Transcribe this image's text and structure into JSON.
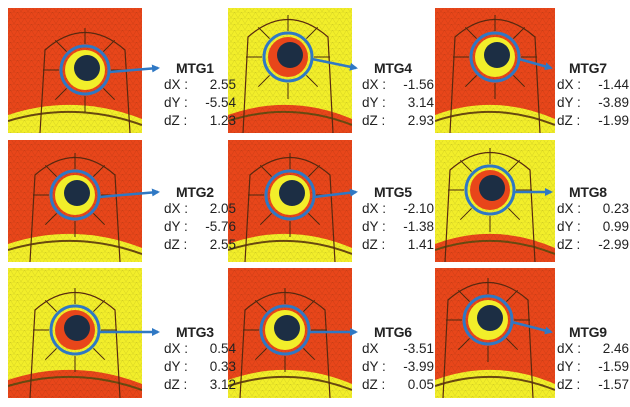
{
  "colors": {
    "mesh_red": "#e8461a",
    "mesh_yellow": "#f2ee2a",
    "hole": "#1c2e44",
    "ring": "#2f78c4"
  },
  "panels": [
    {
      "name": "MTG1",
      "dX_label": "dX :",
      "dX": "2.55",
      "dY_label": "dY :",
      "dY": "-5.54",
      "dZ_label": "dZ :",
      "dZ": "1.23"
    },
    {
      "name": "MTG4",
      "dX_label": "dX :",
      "dX": "-1.56",
      "dY_label": "dY :",
      "dY": "3.14",
      "dZ_label": "dZ :",
      "dZ": "2.93"
    },
    {
      "name": "MTG7",
      "dX_label": "dX :",
      "dX": "-1.44",
      "dY_label": "dY :",
      "dY": "-3.89",
      "dZ_label": "dZ :",
      "dZ": "-1.99"
    },
    {
      "name": "MTG2",
      "dX_label": "dX :",
      "dX": "2.05",
      "dY_label": "dY :",
      "dY": "-5.76",
      "dZ_label": "dZ :",
      "dZ": "2.55"
    },
    {
      "name": "MTG5",
      "dX_label": "dX :",
      "dX": "-2.10",
      "dY_label": "dY :",
      "dY": "-1.38",
      "dZ_label": "dZ :",
      "dZ": "1.41"
    },
    {
      "name": "MTG8",
      "dX_label": "dX :",
      "dX": "0.23",
      "dY_label": "dY :",
      "dY": "0.99",
      "dZ_label": "dZ :",
      "dZ": "-2.99"
    },
    {
      "name": "MTG3",
      "dX_label": "dX :",
      "dX": "0.54",
      "dY_label": "dY :",
      "dY": "0.33",
      "dZ_label": "dZ :",
      "dZ": "3.12"
    },
    {
      "name": "MTG6",
      "dX_label": "dX",
      "dX": "-3.51",
      "dY_label": "dY :",
      "dY": "-3.99",
      "dZ_label": "dZ :",
      "dZ": "0.05"
    },
    {
      "name": "MTG9",
      "dX_label": "dX :",
      "dX": "2.46",
      "dY_label": "dY :",
      "dY": "-1.59",
      "dZ_label": "dZ :",
      "dZ": "-1.57"
    }
  ]
}
